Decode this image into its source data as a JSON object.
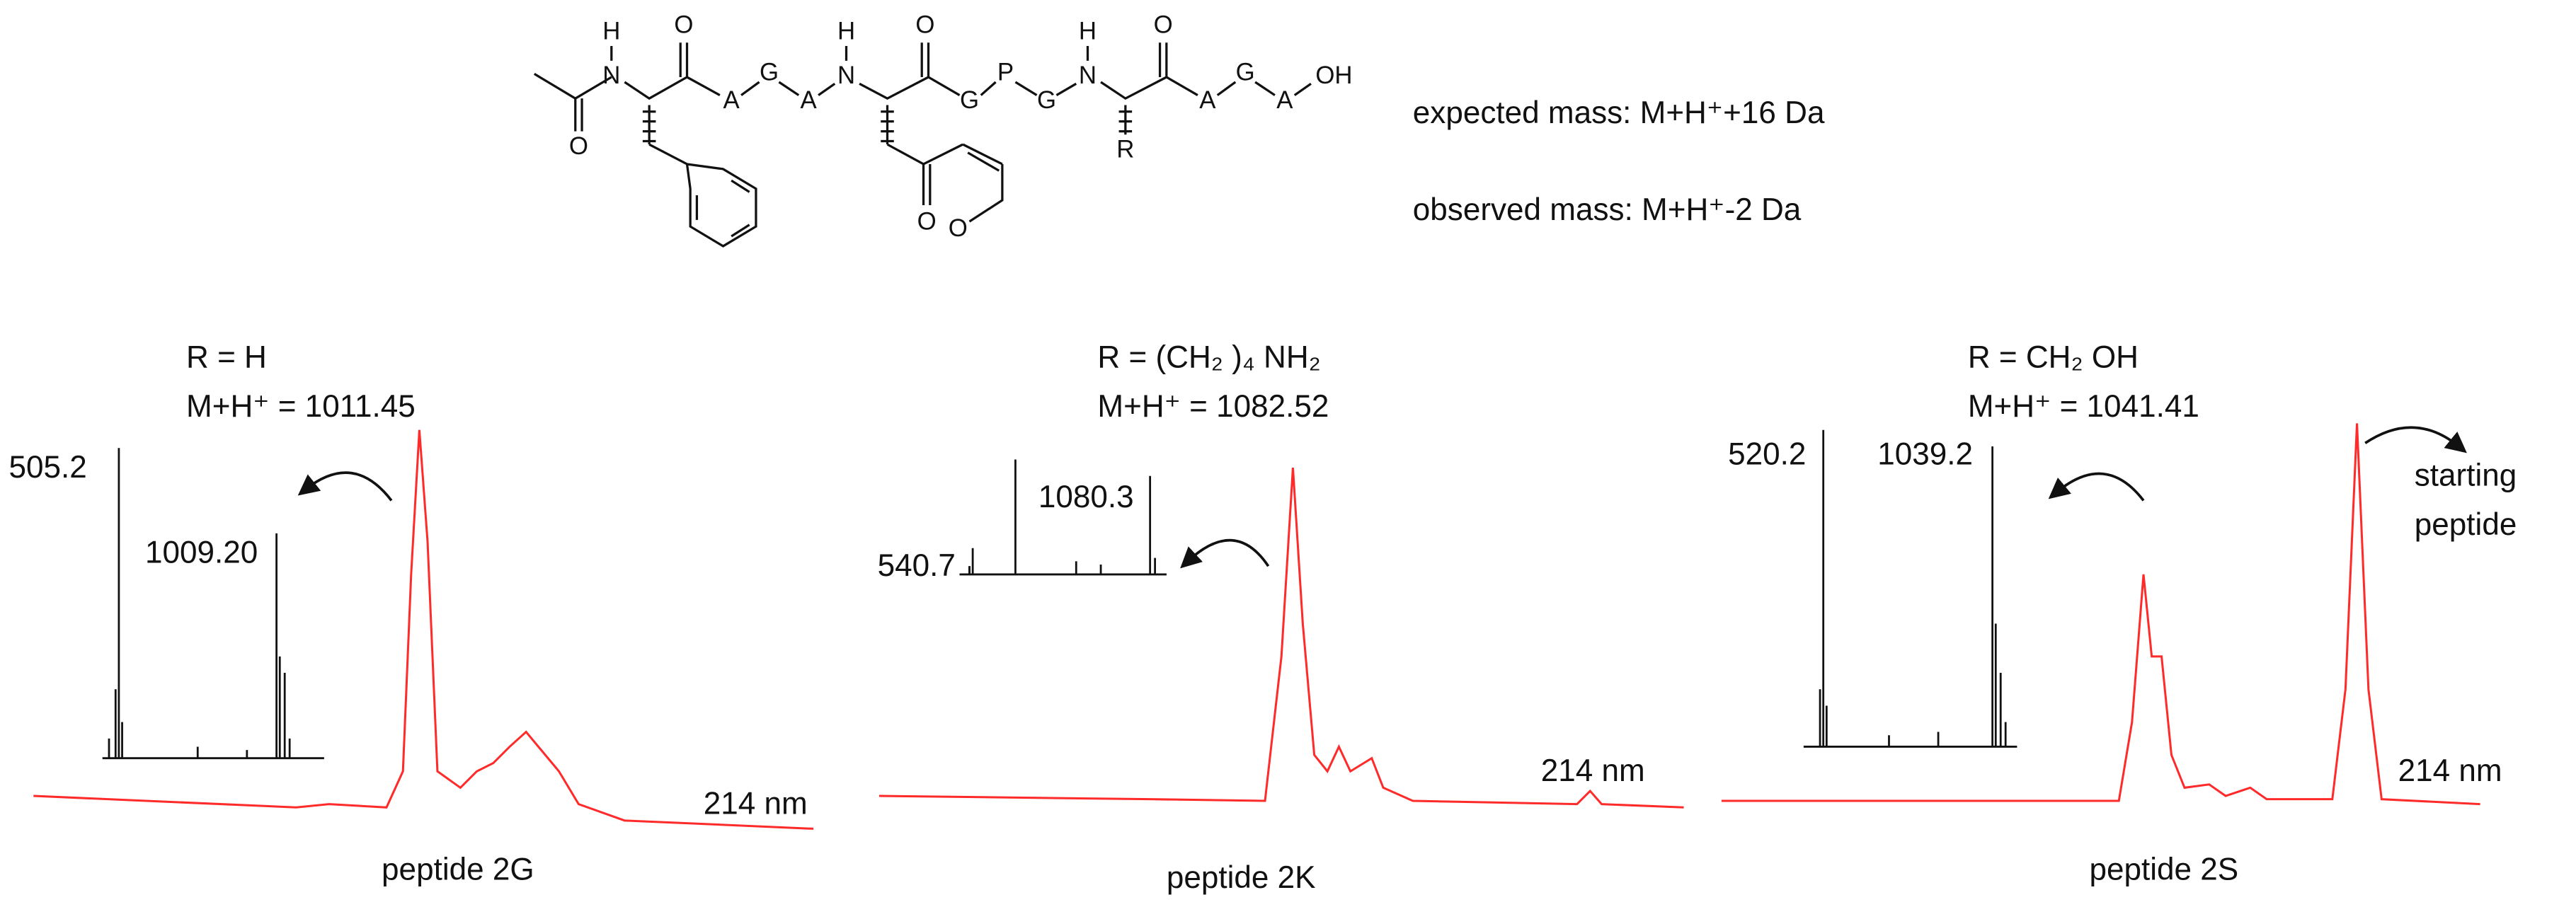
{
  "structure": {
    "atoms": [
      "H",
      "N",
      "O",
      "O",
      "A",
      "G",
      "A",
      "H",
      "N",
      "O",
      "O",
      "O",
      "G",
      "P",
      "G",
      "H",
      "N",
      "R",
      "O",
      "A",
      "G",
      "A",
      "OH"
    ],
    "expected_mass": "expected mass: M+H⁺+16 Da",
    "observed_mass": "observed mass: M+H⁺-2 Da"
  },
  "panels": [
    {
      "r_group": "R = H",
      "mass": "M+H⁺ = 1011.45",
      "ms_peaks": [
        "505.2",
        "1009.20"
      ],
      "wavelength": "214 nm",
      "caption": "peptide 2G"
    },
    {
      "r_group": "R = (CH₂ )₄ NH₂",
      "mass": "M+H⁺ = 1082.52",
      "ms_peaks": [
        "540.7",
        "1080.3"
      ],
      "wavelength": "214 nm",
      "caption": "peptide 2K"
    },
    {
      "r_group": "R = CH₂ OH",
      "mass": "M+H⁺ = 1041.41",
      "ms_peaks": [
        "520.2",
        "1039.2"
      ],
      "wavelength": "214 nm",
      "caption": "peptide 2S",
      "annotation": [
        "starting",
        "peptide"
      ]
    }
  ]
}
